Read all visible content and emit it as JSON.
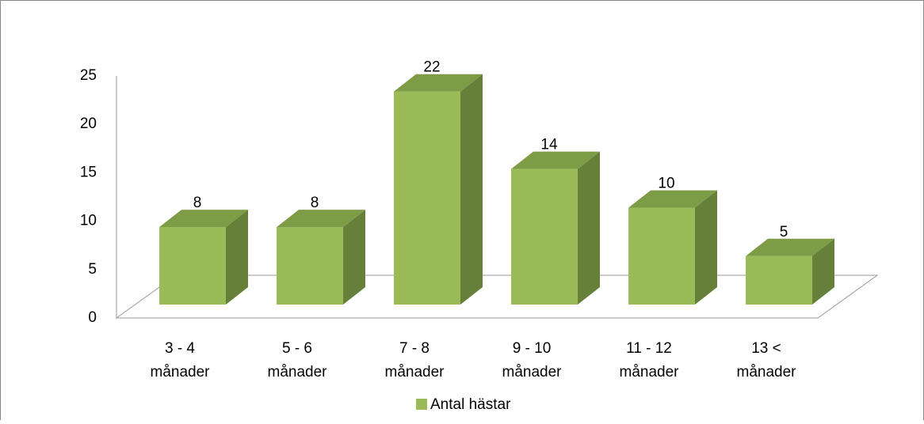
{
  "chart_data": {
    "type": "bar3d",
    "categories": [
      [
        "3 - 4",
        "månader"
      ],
      [
        "5 - 6",
        "månader"
      ],
      [
        "7 - 8",
        "månader"
      ],
      [
        "9 - 10",
        "månader"
      ],
      [
        "11 - 12",
        "månader"
      ],
      [
        "13 <",
        "månader"
      ]
    ],
    "series": [
      {
        "name": "Antal hästar",
        "color": "#9bbb59",
        "values": [
          8,
          8,
          22,
          14,
          10,
          5
        ]
      }
    ],
    "ylim": [
      0,
      25
    ],
    "yticks": [
      0,
      5,
      10,
      15,
      20,
      25
    ],
    "grid": false,
    "legend": "bottom"
  }
}
